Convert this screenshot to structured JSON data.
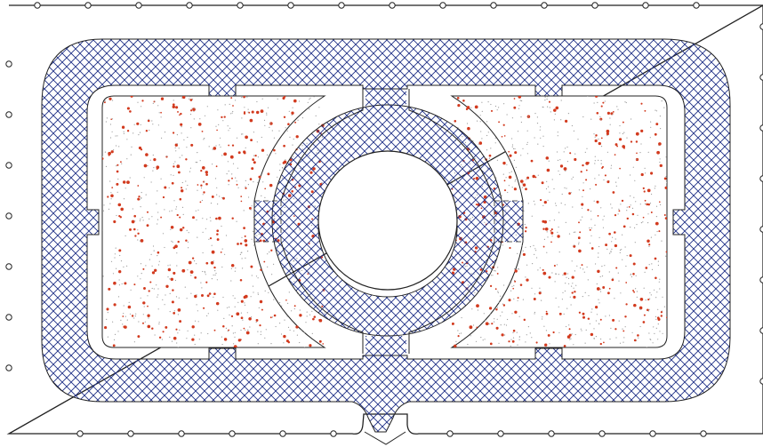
{
  "diagram": {
    "type": "site-plan",
    "colors": {
      "background": "#ffffff",
      "line": "#222222",
      "hatch": "#1e2f86",
      "stipple_red": "#d23a1e",
      "stipple_gray": "#9a9a9a"
    },
    "elements": [
      "site-boundary",
      "boundary-post-markers",
      "perimeter-hatched-path",
      "entrance-path",
      "planted-bed-left",
      "planted-bed-right",
      "central-ring-path",
      "center-circle",
      "cross-path-top",
      "cross-path-bottom",
      "cross-path-left",
      "cross-path-right",
      "arc-walls"
    ],
    "labels": []
  }
}
